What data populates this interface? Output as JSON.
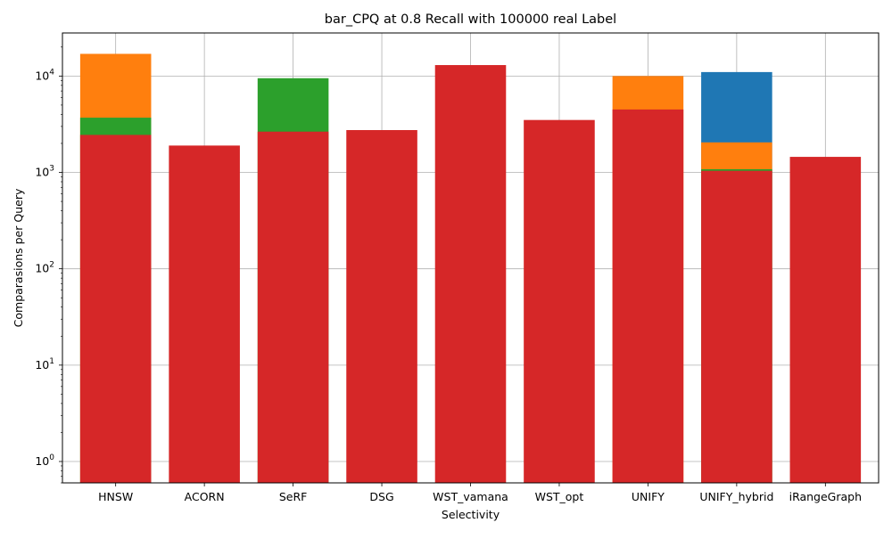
{
  "chart_data": {
    "type": "bar",
    "title": "bar_CPQ at 0.8 Recall with 100000 real Label",
    "xlabel": "Selectivity",
    "ylabel": "Comparasions per Query",
    "yscale": "log",
    "ylim": [
      0.6,
      28000
    ],
    "grid": true,
    "categories": [
      "HNSW",
      "ACORN",
      "SeRF",
      "DSG",
      "WST_vamana",
      "WST_opt",
      "UNIFY",
      "UNIFY_hybrid",
      "iRangeGraph"
    ],
    "y_ticks": [
      {
        "value": 1,
        "base": "10",
        "exp": "0"
      },
      {
        "value": 10,
        "base": "10",
        "exp": "1"
      },
      {
        "value": 100,
        "base": "10",
        "exp": "2"
      },
      {
        "value": 1000,
        "base": "10",
        "exp": "3"
      },
      {
        "value": 10000,
        "base": "10",
        "exp": "4"
      }
    ],
    "series": [
      {
        "color": "#1f77b4",
        "values": [
          null,
          null,
          null,
          null,
          null,
          null,
          null,
          11000,
          null
        ]
      },
      {
        "color": "#ff7f0e",
        "values": [
          17000,
          null,
          null,
          null,
          null,
          null,
          10000,
          2050,
          null
        ]
      },
      {
        "color": "#2ca02c",
        "values": [
          3700,
          null,
          9500,
          null,
          null,
          null,
          null,
          1080,
          null
        ]
      },
      {
        "color": "#d62728",
        "values": [
          2450,
          1900,
          2650,
          2750,
          13000,
          3500,
          4500,
          1040,
          1450
        ]
      }
    ]
  }
}
